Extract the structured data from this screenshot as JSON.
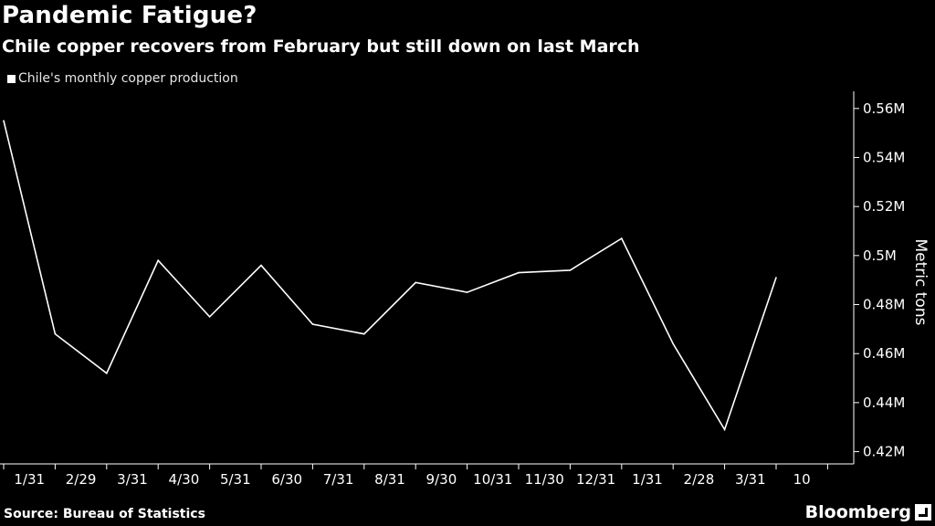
{
  "header": {
    "title": "Pandemic Fatigue?",
    "subtitle": "Chile copper recovers from February but still down on last March"
  },
  "legend": {
    "label": "Chile's monthly copper production"
  },
  "footer": {
    "source": "Source:  Bureau of Statistics",
    "brand": "Bloomberg"
  },
  "colors": {
    "background": "#000000",
    "line": "#ffffff",
    "axis": "#ffffff"
  },
  "chart_data": {
    "type": "line",
    "title": "Pandemic Fatigue?",
    "subtitle": "Chile copper recovers from February but still down on last March",
    "xlabel": "",
    "ylabel": "Metric tons",
    "y_axis_position": "right",
    "legend_placement": "top-left",
    "grid": false,
    "ylim": [
      0.415,
      0.567
    ],
    "yticks": [
      0.42,
      0.44,
      0.46,
      0.48,
      0.5,
      0.52,
      0.54,
      0.56
    ],
    "ytick_labels": [
      "0.42M",
      "0.44M",
      "0.46M",
      "0.48M",
      "0.5M",
      "0.52M",
      "0.54M",
      "0.56M"
    ],
    "x_tick_labels": [
      "1/31",
      "2/29",
      "3/31",
      "4/30",
      "5/31",
      "6/30",
      "7/31",
      "8/31",
      "9/30",
      "10/31",
      "11/30",
      "12/31",
      "1/31",
      "2/28",
      "3/31",
      "10"
    ],
    "series": [
      {
        "name": "Chile's monthly copper production",
        "x": [
          "12/31",
          "1/31",
          "2/29",
          "3/31",
          "4/30",
          "5/31",
          "6/30",
          "7/31",
          "8/31",
          "9/30",
          "10/31",
          "11/30",
          "12/31",
          "1/31",
          "2/28",
          "3/31"
        ],
        "values": [
          0.555,
          0.468,
          0.452,
          0.498,
          0.475,
          0.496,
          0.472,
          0.468,
          0.489,
          0.485,
          0.493,
          0.494,
          0.507,
          0.464,
          0.429,
          0.491
        ]
      }
    ]
  }
}
